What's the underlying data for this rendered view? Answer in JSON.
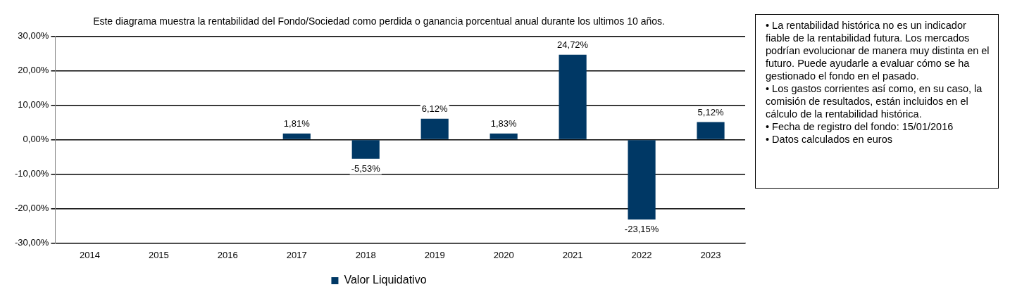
{
  "chart_data": {
    "type": "bar",
    "title": "Este diagrama muestra la rentabilidad del Fondo/Sociedad como perdida o ganancia porcentual anual durante los ultimos 10 años.",
    "categories": [
      "2014",
      "2015",
      "2016",
      "2017",
      "2018",
      "2019",
      "2020",
      "2021",
      "2022",
      "2023"
    ],
    "series": [
      {
        "name": "Valor Liquidativo",
        "color": "#003865",
        "values": [
          null,
          null,
          null,
          1.81,
          -5.53,
          6.12,
          1.83,
          24.72,
          -23.15,
          5.12
        ],
        "value_labels": [
          null,
          null,
          null,
          "1,81%",
          "-5,53%",
          "6,12%",
          "1,83%",
          "24,72%",
          "-23,15%",
          "5,12%"
        ]
      }
    ],
    "ylim": [
      -30,
      30
    ],
    "yticks": [
      {
        "value": -30,
        "label": "-30,00%"
      },
      {
        "value": -20,
        "label": "-20,00%"
      },
      {
        "value": -10,
        "label": "-10,00%"
      },
      {
        "value": 0,
        "label": "0,00%"
      },
      {
        "value": 10,
        "label": "10,00%"
      },
      {
        "value": 20,
        "label": "20,00%"
      },
      {
        "value": 30,
        "label": "30,00%"
      }
    ],
    "grid": "y",
    "legend": "bottom",
    "annotations": [
      "• La rentabilidad histórica no es un indicador fiable de la rentabilidad futura. Los mercados podrían evolucionar de manera muy distinta en el futuro. Puede ayudarle a evaluar cómo se ha gestionado el fondo en el pasado.",
      "• Los gastos corrientes así como, en su caso, la comisión de resultados, están incluidos en el cálculo de la rentabilidad histórica.",
      "• Fecha de registro del fondo: 15/01/2016",
      "• Datos calculados en euros"
    ]
  }
}
